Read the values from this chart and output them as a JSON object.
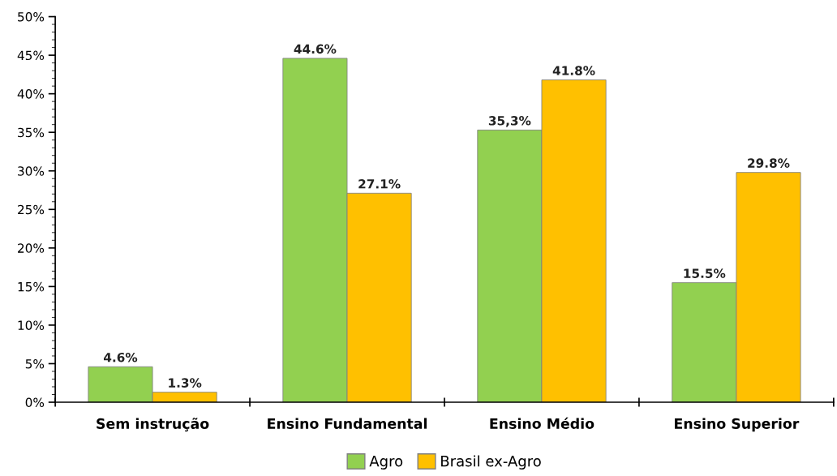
{
  "chart_data": {
    "type": "bar",
    "categories": [
      "Sem instrução",
      "Ensino Fundamental",
      "Ensino Médio",
      "Ensino Superior"
    ],
    "series": [
      {
        "name": "Agro",
        "color": "#92d050",
        "values": [
          4.6,
          44.6,
          35.3,
          15.5
        ],
        "value_labels": [
          "4.6%",
          "44.6%",
          "35,3%",
          "15.5%"
        ]
      },
      {
        "name": "Brasil ex-Agro",
        "color": "#ffc000",
        "values": [
          1.3,
          27.1,
          41.8,
          29.8
        ],
        "value_labels": [
          "1.3%",
          "27.1%",
          "41.8%",
          "29.8%"
        ]
      }
    ],
    "ylim": [
      0,
      50
    ],
    "yticks": [
      {
        "value": 0,
        "label": "0%"
      },
      {
        "value": 5,
        "label": "5%"
      },
      {
        "value": 10,
        "label": "10%"
      },
      {
        "value": 15,
        "label": "15%"
      },
      {
        "value": 20,
        "label": "20%"
      },
      {
        "value": 25,
        "label": "25%"
      },
      {
        "value": 30,
        "label": "30%"
      },
      {
        "value": 35,
        "label": "35%"
      },
      {
        "value": 40,
        "label": "40%"
      },
      {
        "value": 45,
        "label": "45%"
      },
      {
        "value": 50,
        "label": "50%"
      }
    ],
    "grid": false,
    "legend": "bottom"
  }
}
